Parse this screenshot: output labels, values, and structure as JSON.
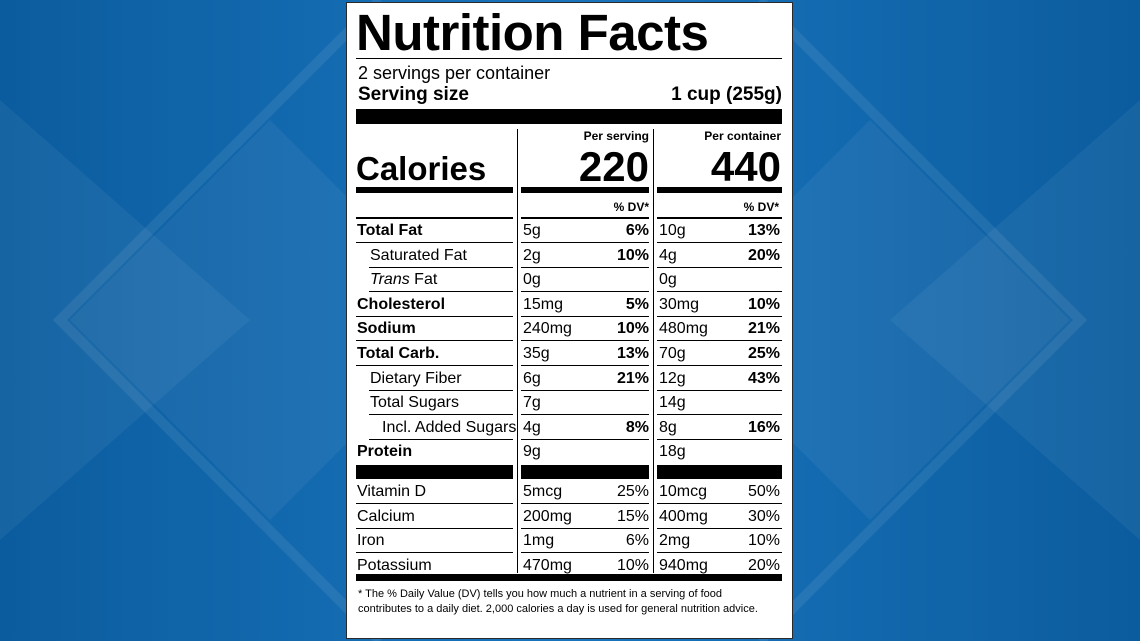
{
  "background": {
    "color_light": "#1a75bd",
    "color_dark": "#0b5c9e"
  },
  "label": {
    "title": "Nutrition Facts",
    "servings_per_container": "2 servings per container",
    "serving_size_label": "Serving size",
    "serving_size_value": "1 cup (255g)",
    "per_serving_head": "Per serving",
    "per_container_head": "Per container",
    "calories_label": "Calories",
    "calories_per_serving": "220",
    "calories_per_container": "440",
    "dv_head": "% DV*",
    "nutrients": [
      {
        "pre": "",
        "name": "Total Fat",
        "post": "",
        "bold": true,
        "indent": 0,
        "s_amt": "5g",
        "s_dv": "6%",
        "c_amt": "10g",
        "c_dv": "13%",
        "dv_bold": true
      },
      {
        "pre": "",
        "name": "Saturated Fat",
        "post": "",
        "bold": false,
        "indent": 1,
        "s_amt": "2g",
        "s_dv": "10%",
        "c_amt": "4g",
        "c_dv": "20%",
        "dv_bold": true
      },
      {
        "pre": "Trans",
        "name": "",
        "post": " Fat",
        "bold": false,
        "indent": 1,
        "s_amt": "0g",
        "s_dv": "",
        "c_amt": "0g",
        "c_dv": "",
        "dv_bold": true
      },
      {
        "pre": "",
        "name": "Cholesterol",
        "post": "",
        "bold": true,
        "indent": 0,
        "s_amt": "15mg",
        "s_dv": "5%",
        "c_amt": "30mg",
        "c_dv": "10%",
        "dv_bold": true
      },
      {
        "pre": "",
        "name": "Sodium",
        "post": "",
        "bold": true,
        "indent": 0,
        "s_amt": "240mg",
        "s_dv": "10%",
        "c_amt": "480mg",
        "c_dv": "21%",
        "dv_bold": true
      },
      {
        "pre": "",
        "name": "Total Carb.",
        "post": "",
        "bold": true,
        "indent": 0,
        "s_amt": "35g",
        "s_dv": "13%",
        "c_amt": "70g",
        "c_dv": "25%",
        "dv_bold": true
      },
      {
        "pre": "",
        "name": "Dietary Fiber",
        "post": "",
        "bold": false,
        "indent": 1,
        "s_amt": "6g",
        "s_dv": "21%",
        "c_amt": "12g",
        "c_dv": "43%",
        "dv_bold": true
      },
      {
        "pre": "",
        "name": "Total Sugars",
        "post": "",
        "bold": false,
        "indent": 1,
        "s_amt": "7g",
        "s_dv": "",
        "c_amt": "14g",
        "c_dv": "",
        "dv_bold": true
      },
      {
        "pre": "",
        "name": "Incl. Added Sugars",
        "post": "",
        "bold": false,
        "indent": 2,
        "s_amt": "4g",
        "s_dv": "8%",
        "c_amt": "8g",
        "c_dv": "16%",
        "dv_bold": true
      },
      {
        "pre": "",
        "name": "Protein",
        "post": "",
        "bold": true,
        "indent": 0,
        "s_amt": "9g",
        "s_dv": "",
        "c_amt": "18g",
        "c_dv": "",
        "dv_bold": true
      }
    ],
    "vitamins": [
      {
        "name": "Vitamin D",
        "s_amt": "5mcg",
        "s_dv": "25%",
        "c_amt": "10mcg",
        "c_dv": "50%"
      },
      {
        "name": "Calcium",
        "s_amt": "200mg",
        "s_dv": "15%",
        "c_amt": "400mg",
        "c_dv": "30%"
      },
      {
        "name": "Iron",
        "s_amt": "1mg",
        "s_dv": "6%",
        "c_amt": "2mg",
        "c_dv": "10%"
      },
      {
        "name": "Potassium",
        "s_amt": "470mg",
        "s_dv": "10%",
        "c_amt": "940mg",
        "c_dv": "20%"
      }
    ],
    "footnote": "* The % Daily Value (DV) tells you how much a nutrient in a serving of food contributes to a daily diet. 2,000 calories a day is used for general nutrition advice."
  }
}
